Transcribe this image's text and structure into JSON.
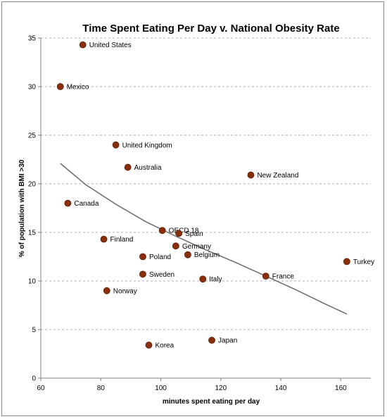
{
  "chart_data": {
    "type": "scatter",
    "title": "Time Spent Eating Per Day v. National Obesity Rate",
    "xlabel": "minutes spent eating per day",
    "ylabel": "% of population with BMI >30",
    "xlim": [
      60,
      170
    ],
    "ylim": [
      0,
      35
    ],
    "x_ticks": [
      60,
      80,
      100,
      120,
      140,
      160
    ],
    "y_ticks": [
      0,
      5,
      10,
      15,
      20,
      25,
      30,
      35
    ],
    "grid": "horizontal dashed",
    "marker_color": "#8b2e0b",
    "trendline_color": "#6b6b6b",
    "points": [
      {
        "label": "United States",
        "x": 74,
        "y": 34.3
      },
      {
        "label": "Mexico",
        "x": 66.5,
        "y": 30
      },
      {
        "label": "United Kingdom",
        "x": 85,
        "y": 24
      },
      {
        "label": "Australia",
        "x": 89,
        "y": 21.7
      },
      {
        "label": "New Zealand",
        "x": 130,
        "y": 20.9
      },
      {
        "label": "Canada",
        "x": 69,
        "y": 18
      },
      {
        "label": "OECD 18",
        "x": 100.5,
        "y": 15.2
      },
      {
        "label": "Spain",
        "x": 106,
        "y": 14.9
      },
      {
        "label": "Finland",
        "x": 81,
        "y": 14.3
      },
      {
        "label": "Germany",
        "x": 105,
        "y": 13.6
      },
      {
        "label": "Belgium",
        "x": 109,
        "y": 12.7
      },
      {
        "label": "Poland",
        "x": 94,
        "y": 12.5
      },
      {
        "label": "Turkey",
        "x": 162,
        "y": 12
      },
      {
        "label": "Sweden",
        "x": 94,
        "y": 10.7
      },
      {
        "label": "France",
        "x": 135,
        "y": 10.5
      },
      {
        "label": "Italy",
        "x": 114,
        "y": 10.2
      },
      {
        "label": "Norway",
        "x": 82,
        "y": 9
      },
      {
        "label": "Japan",
        "x": 117,
        "y": 3.9
      },
      {
        "label": "Korea",
        "x": 96,
        "y": 3.4
      }
    ],
    "trendline": {
      "type": "power",
      "x": [
        66.5,
        75,
        85,
        95,
        105,
        115,
        125,
        135,
        145,
        155,
        162
      ],
      "y": [
        22.1,
        19.9,
        17.9,
        16.1,
        14.6,
        13.2,
        11.9,
        10.5,
        9.1,
        7.6,
        6.6
      ]
    }
  }
}
